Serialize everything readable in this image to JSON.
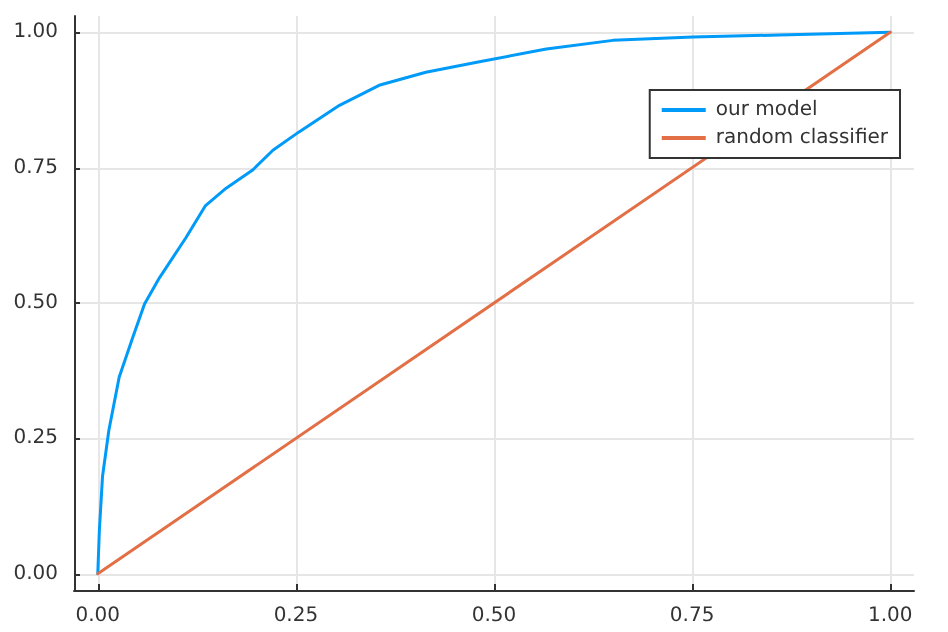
{
  "chart_data": {
    "type": "line",
    "xlim": [
      -0.03,
      1.03
    ],
    "ylim": [
      -0.03,
      1.03
    ],
    "xticks": [
      {
        "value": 0,
        "label": "0.00"
      },
      {
        "value": 0.25,
        "label": "0.25"
      },
      {
        "value": 0.5,
        "label": "0.50"
      },
      {
        "value": 0.75,
        "label": "0.75"
      },
      {
        "value": 1,
        "label": "1.00"
      }
    ],
    "yticks": [
      {
        "value": 0,
        "label": "0.00"
      },
      {
        "value": 0.25,
        "label": "0.25"
      },
      {
        "value": 0.5,
        "label": "0.50"
      },
      {
        "value": 0.75,
        "label": "0.75"
      },
      {
        "value": 1,
        "label": "1.00"
      }
    ],
    "grid": true,
    "legend": "top right",
    "marker": "none",
    "line_style": "solid",
    "series": [
      {
        "name": "our model",
        "color": "#009af9",
        "x": [
          0,
          0.002,
          0.006,
          0.014,
          0.027,
          0.044,
          0.059,
          0.078,
          0.111,
          0.136,
          0.162,
          0.195,
          0.221,
          0.254,
          0.305,
          0.355,
          0.414,
          0.48,
          0.566,
          0.65,
          0.751,
          0.86,
          1
        ],
        "values": [
          0,
          0.08,
          0.18,
          0.265,
          0.363,
          0.436,
          0.498,
          0.547,
          0.62,
          0.68,
          0.712,
          0.745,
          0.782,
          0.816,
          0.865,
          0.902,
          0.926,
          0.945,
          0.969,
          0.985,
          0.991,
          0.995,
          1
        ]
      },
      {
        "name": "random classifier",
        "color": "#e26f46",
        "x": [
          0,
          1
        ],
        "values": [
          0,
          1
        ]
      }
    ]
  }
}
